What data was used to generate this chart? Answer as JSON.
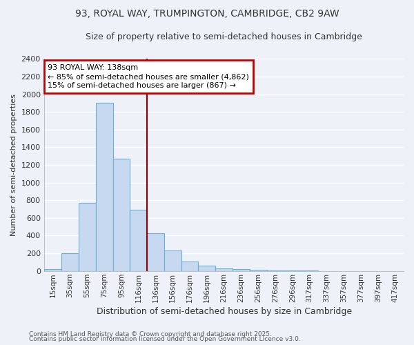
{
  "title": "93, ROYAL WAY, TRUMPINGTON, CAMBRIDGE, CB2 9AW",
  "subtitle": "Size of property relative to semi-detached houses in Cambridge",
  "xlabel": "Distribution of semi-detached houses by size in Cambridge",
  "ylabel": "Number of semi-detached properties",
  "categories": [
    "15sqm",
    "35sqm",
    "55sqm",
    "75sqm",
    "95sqm",
    "116sqm",
    "136sqm",
    "156sqm",
    "176sqm",
    "196sqm",
    "216sqm",
    "236sqm",
    "256sqm",
    "276sqm",
    "296sqm",
    "317sqm",
    "337sqm",
    "357sqm",
    "377sqm",
    "397sqm",
    "417sqm"
  ],
  "values": [
    20,
    200,
    770,
    1900,
    1270,
    690,
    430,
    230,
    110,
    60,
    30,
    20,
    10,
    5,
    3,
    2,
    1,
    1,
    0,
    0,
    0
  ],
  "vline_index": 6,
  "bar_color_face": "#c6d9f0",
  "bar_color_edge": "#6baed6",
  "annotation_line1": "93 ROYAL WAY: 138sqm",
  "annotation_line2": "← 85% of semi-detached houses are smaller (4,862)",
  "annotation_line3": "15% of semi-detached houses are larger (867) →",
  "annotation_box_color": "#c00000",
  "ylim": [
    0,
    2400
  ],
  "yticks": [
    0,
    200,
    400,
    600,
    800,
    1000,
    1200,
    1400,
    1600,
    1800,
    2000,
    2200,
    2400
  ],
  "footer1": "Contains HM Land Registry data © Crown copyright and database right 2025.",
  "footer2": "Contains public sector information licensed under the Open Government Licence v3.0.",
  "background_color": "#eef2f8",
  "grid_color": "#ffffff",
  "vline_color": "#8b0000",
  "title_fontsize": 10,
  "subtitle_fontsize": 9
}
